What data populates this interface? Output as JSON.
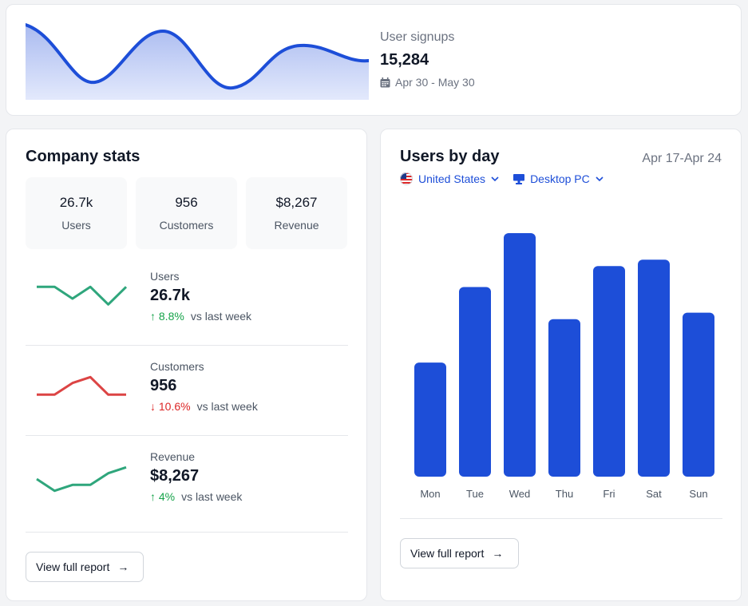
{
  "signups": {
    "label": "User signups",
    "value": "15,284",
    "date_range": "Apr 30 - May 30",
    "accent": "#1d4ed8",
    "fill": "#c7d2f8"
  },
  "company_stats": {
    "title": "Company stats",
    "summary": [
      {
        "value": "26.7k",
        "label": "Users"
      },
      {
        "value": "956",
        "label": "Customers"
      },
      {
        "value": "$8,267",
        "label": "Revenue"
      }
    ],
    "metrics": [
      {
        "label": "Users",
        "value": "26.7k",
        "change": "8.8%",
        "direction": "up",
        "comparison": "vs last week",
        "color": "#2fa67c",
        "trend": [
          5,
          5,
          3,
          5,
          2,
          5
        ]
      },
      {
        "label": "Customers",
        "value": "956",
        "change": "10.6%",
        "direction": "down",
        "comparison": "vs last week",
        "color": "#dc4444",
        "trend": [
          2,
          2,
          4,
          5,
          2,
          2
        ]
      },
      {
        "label": "Revenue",
        "value": "$8,267",
        "change": "4%",
        "direction": "up",
        "comparison": "vs last week",
        "color": "#2fa67c",
        "trend": [
          3,
          1,
          2,
          2,
          4,
          5
        ]
      }
    ],
    "report_button": "View full report"
  },
  "users_by_day": {
    "title": "Users by day",
    "date_range": "Apr 17-Apr 24",
    "filters": {
      "country": "United States",
      "device": "Desktop PC"
    },
    "report_button": "View full report"
  },
  "chart_data": {
    "type": "bar",
    "categories": [
      "Mon",
      "Tue",
      "Wed",
      "Thu",
      "Fri",
      "Sat",
      "Sun"
    ],
    "values": [
      142,
      236,
      303,
      196,
      262,
      270,
      204
    ],
    "ylim": [
      0,
      303
    ],
    "grid": false,
    "color": "#1d4ed8"
  }
}
